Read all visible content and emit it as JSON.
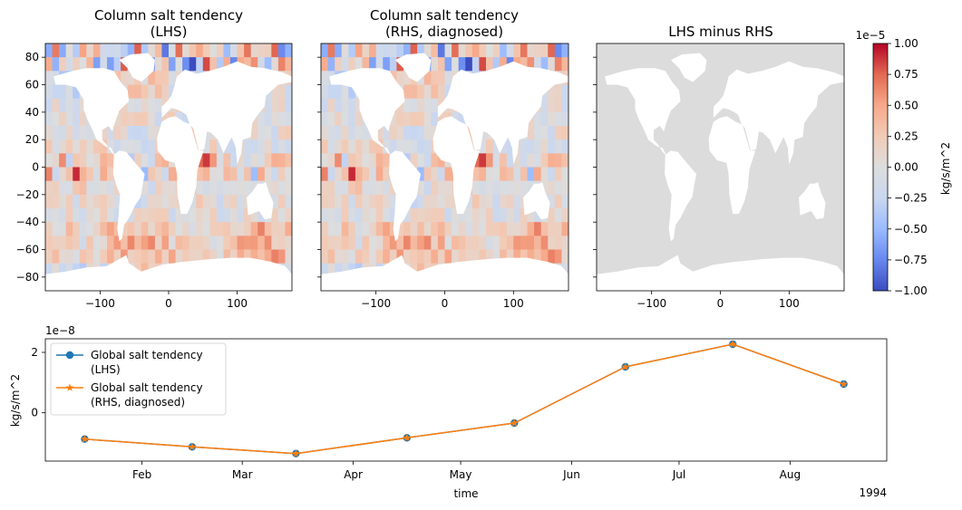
{
  "colors": {
    "land": "#ffffff",
    "diff_ocean": "#dcdcdc",
    "lhs_line": "#1f77b4",
    "rhs_line": "#ff7f0e",
    "cmap": [
      "#3b4cc0",
      "#6788ee",
      "#9abbff",
      "#c9d7f0",
      "#dddddd",
      "#f2cbb7",
      "#f7a889",
      "#e26952",
      "#b40426"
    ]
  },
  "maps": [
    {
      "title_lines": [
        "Column salt tendency",
        "(LHS)"
      ],
      "kind": "field",
      "show_yticks": true
    },
    {
      "title_lines": [
        "Column salt tendency",
        "(RHS, diagnosed)"
      ],
      "kind": "field",
      "show_yticks": false
    },
    {
      "title_lines": [
        "LHS minus RHS"
      ],
      "kind": "difference",
      "show_yticks": false
    }
  ],
  "map_axes": {
    "x_ticks": [
      -100,
      0,
      100
    ],
    "x_tick_labels": [
      "−100",
      "0",
      "100"
    ],
    "y_ticks": [
      80,
      60,
      40,
      20,
      0,
      -20,
      -40,
      -60,
      -80
    ],
    "y_tick_labels": [
      "80",
      "60",
      "40",
      "20",
      "0",
      "−20",
      "−40",
      "−60",
      "−80"
    ],
    "xlim": [
      -180,
      180
    ],
    "ylim": [
      -90,
      90
    ]
  },
  "colorbar": {
    "label": "kg/s/m^2",
    "offset_text": "1e−5",
    "ticks": [
      1.0,
      0.75,
      0.5,
      0.25,
      0.0,
      -0.25,
      -0.5,
      -0.75,
      -1.0
    ],
    "tick_labels": [
      "1.00",
      "0.75",
      "0.50",
      "0.25",
      "0.00",
      "−0.25",
      "−0.50",
      "−0.75",
      "−1.00"
    ],
    "vmin": -1.0,
    "vmax": 1.0
  },
  "chart_data": [
    {
      "type": "heatmap",
      "title": "Column salt tendency (LHS)",
      "xlim": [
        -180,
        180
      ],
      "ylim": [
        -90,
        90
      ],
      "clim": [
        -1e-05,
        1e-05
      ],
      "colormap": "coolwarm"
    },
    {
      "type": "heatmap",
      "title": "Column salt tendency (RHS, diagnosed)",
      "xlim": [
        -180,
        180
      ],
      "ylim": [
        -90,
        90
      ],
      "clim": [
        -1e-05,
        1e-05
      ],
      "colormap": "coolwarm"
    },
    {
      "type": "heatmap",
      "title": "LHS minus RHS",
      "xlim": [
        -180,
        180
      ],
      "ylim": [
        -90,
        90
      ],
      "clim": [
        -1e-05,
        1e-05
      ],
      "colormap": "coolwarm"
    },
    {
      "type": "line",
      "xlabel": "time",
      "ylabel": "kg/s/m^2",
      "offset_text": "1e−8",
      "year_label": "1994",
      "x": [
        "1994-01-16",
        "1994-02-15",
        "1994-03-16",
        "1994-04-16",
        "1994-05-16",
        "1994-06-16",
        "1994-07-16",
        "1994-08-16"
      ],
      "x_tick_dates": [
        "1994-02-01",
        "1994-03-01",
        "1994-04-01",
        "1994-05-01",
        "1994-06-01",
        "1994-07-01",
        "1994-08-01"
      ],
      "x_tick_labels": [
        "Feb",
        "Mar",
        "Apr",
        "May",
        "Jun",
        "Jul",
        "Aug"
      ],
      "xlim": [
        "1994-01-05",
        "1994-08-28"
      ],
      "ylim": [
        -1.6,
        2.45
      ],
      "y_ticks": [
        2,
        0
      ],
      "y_tick_labels": [
        "2",
        "0"
      ],
      "legend": "upper left",
      "series": [
        {
          "name": "Global salt tendency\n(LHS)",
          "marker": "circle",
          "color": "#1f77b4",
          "values": [
            -0.87,
            -1.13,
            -1.35,
            -0.83,
            -0.34,
            1.52,
            2.27,
            0.95
          ]
        },
        {
          "name": "Global salt tendency\n(RHS, diagnosed)",
          "marker": "star",
          "color": "#ff7f0e",
          "values": [
            -0.87,
            -1.13,
            -1.35,
            -0.83,
            -0.34,
            1.52,
            2.27,
            0.95
          ]
        }
      ]
    }
  ]
}
